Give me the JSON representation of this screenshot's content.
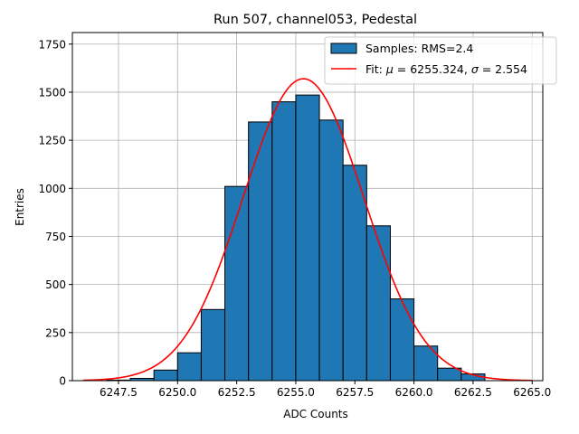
{
  "chart_data": {
    "type": "bar",
    "title": "Run 507, channel053, Pedestal",
    "xlabel": "ADC Counts",
    "ylabel": "Entries",
    "xlim": [
      6245.55,
      6265.45
    ],
    "ylim": [
      0,
      1810
    ],
    "grid": true,
    "legend_position": "top-right",
    "colors": {
      "bars": "#1f77b4",
      "bar_edge": "#000000",
      "fit": "#ff0000",
      "grid": "#b0b0b0"
    },
    "x_ticks": [
      6247.5,
      6250.0,
      6252.5,
      6255.0,
      6257.5,
      6260.0,
      6262.5,
      6265.0
    ],
    "x_tick_labels": [
      "6247.5",
      "6250.0",
      "6252.5",
      "6255.0",
      "6257.5",
      "6260.0",
      "6262.5",
      "6265.0"
    ],
    "y_ticks": [
      0,
      250,
      500,
      750,
      1000,
      1250,
      1500,
      1750
    ],
    "y_tick_labels": [
      "0",
      "250",
      "500",
      "750",
      "1000",
      "1250",
      "1500",
      "1750"
    ],
    "histogram": {
      "name": "Samples: RMS=2.4",
      "bins": [
        {
          "x0": 6247,
          "x1": 6248,
          "count": 3
        },
        {
          "x0": 6248,
          "x1": 6249,
          "count": 12
        },
        {
          "x0": 6249,
          "x1": 6250,
          "count": 55
        },
        {
          "x0": 6250,
          "x1": 6251,
          "count": 145
        },
        {
          "x0": 6251,
          "x1": 6252,
          "count": 370
        },
        {
          "x0": 6252,
          "x1": 6253,
          "count": 1010
        },
        {
          "x0": 6253,
          "x1": 6254,
          "count": 1345
        },
        {
          "x0": 6254,
          "x1": 6255,
          "count": 1450
        },
        {
          "x0": 6255,
          "x1": 6256,
          "count": 1485
        },
        {
          "x0": 6256,
          "x1": 6257,
          "count": 1355
        },
        {
          "x0": 6257,
          "x1": 6258,
          "count": 1120
        },
        {
          "x0": 6258,
          "x1": 6259,
          "count": 805
        },
        {
          "x0": 6259,
          "x1": 6260,
          "count": 425
        },
        {
          "x0": 6260,
          "x1": 6261,
          "count": 180
        },
        {
          "x0": 6261,
          "x1": 6262,
          "count": 65
        },
        {
          "x0": 6262,
          "x1": 6263,
          "count": 35
        }
      ]
    },
    "fit": {
      "name_prefix": "Fit: ",
      "name_mu_symbol": "μ",
      "name_mu_value": " = 6255.324, ",
      "name_sigma_symbol": "σ",
      "name_sigma_value": " = 2.554",
      "mu": 6255.324,
      "sigma": 2.554,
      "amplitude": 1570,
      "x_range": [
        6246,
        6265
      ]
    }
  }
}
